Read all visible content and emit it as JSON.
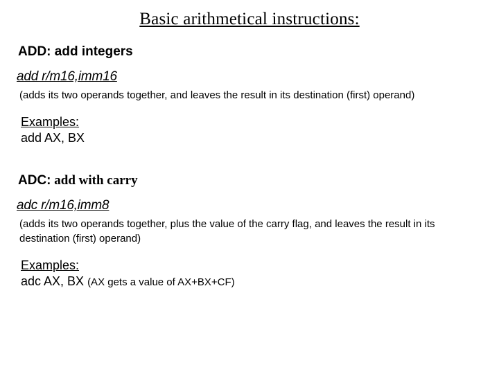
{
  "page": {
    "title": "Basic arithmetical instructions:",
    "title_fontsize": 25,
    "title_font": "Times New Roman (serif)",
    "background_color": "#ffffff",
    "text_color": "#000000"
  },
  "add_block": {
    "header_bold": "ADD: add integers",
    "syntax": "add r/m16,imm16",
    "description": "(adds its two operands together, and leaves the result in its destination (first) operand)",
    "examples_label": "Examples:",
    "example": "add AX, BX"
  },
  "adc_block": {
    "header_mnemonic": "ADC:",
    "header_rest": " add with carry",
    "syntax": "adc r/m16,imm8",
    "description": "(adds its two operands together, plus the value of the carry flag, and leaves the result in its destination (first) operand)",
    "examples_label": "Examples:",
    "example_prefix": "adc AX, BX ",
    "example_note": "(AX gets a value of AX+BX+CF)"
  },
  "styling": {
    "header_fontsize": 19,
    "syntax_fontsize": 19,
    "desc_fontsize": 15,
    "examples_label_fontsize": 18,
    "example_fontsize": 18,
    "note_fontsize": 15,
    "syntax_style": "italic underline",
    "title_style": "underline centered serif",
    "header_weight": "bold"
  }
}
